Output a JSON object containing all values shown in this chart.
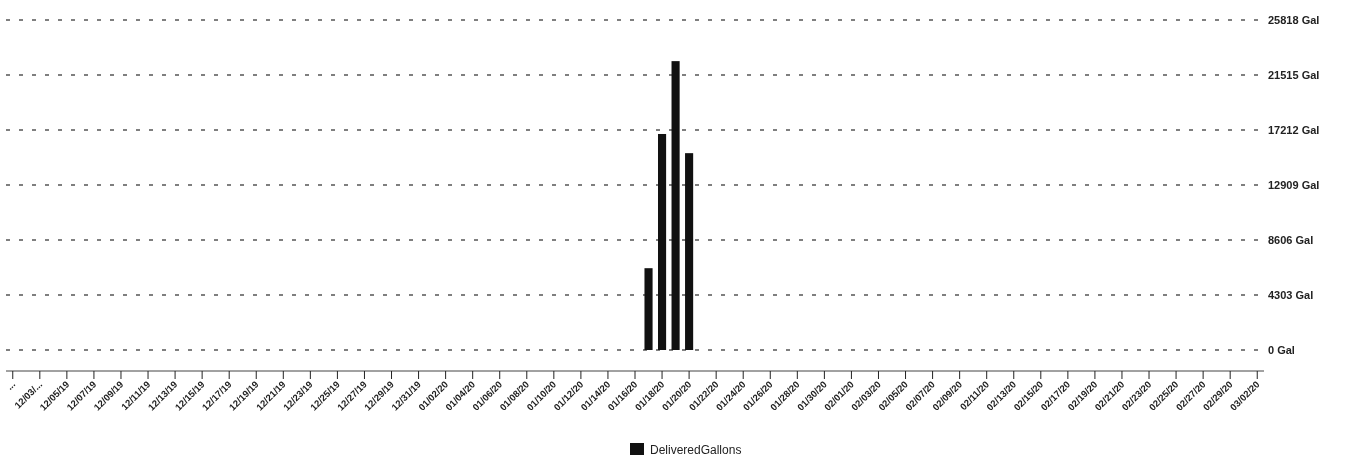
{
  "chart_data": {
    "type": "bar",
    "categories": [
      "...",
      null,
      "12/03/...",
      null,
      "12/05/19",
      null,
      "12/07/19",
      null,
      "12/09/19",
      null,
      "12/11/19",
      null,
      "12/13/19",
      null,
      "12/15/19",
      null,
      "12/17/19",
      null,
      "12/19/19",
      null,
      "12/21/19",
      null,
      "12/23/19",
      null,
      "12/25/19",
      null,
      "12/27/19",
      null,
      "12/29/19",
      null,
      "12/31/19",
      null,
      "01/02/20",
      null,
      "01/04/20",
      null,
      "01/06/20",
      null,
      "01/08/20",
      null,
      "01/10/20",
      null,
      "01/12/20",
      null,
      "01/14/20",
      null,
      "01/16/20",
      null,
      "01/18/20",
      null,
      "01/20/20",
      null,
      "01/22/20",
      null,
      "01/24/20",
      null,
      "01/26/20",
      null,
      "01/28/20",
      null,
      "01/30/20",
      null,
      "02/01/20",
      null,
      "02/03/20",
      null,
      "02/05/20",
      null,
      "02/07/20",
      null,
      "02/09/20",
      null,
      "02/11/20",
      null,
      "02/13/20",
      null,
      "02/15/20",
      null,
      "02/17/20",
      null,
      "02/19/20",
      null,
      "02/21/20",
      null,
      "02/23/20",
      null,
      "02/25/20",
      null,
      "02/27/20",
      null,
      "02/29/20",
      null,
      "03/02/20"
    ],
    "series": [
      {
        "name": "DeliveredGallons",
        "color": "#111111",
        "values": [
          0,
          0,
          0,
          0,
          0,
          0,
          0,
          0,
          0,
          0,
          0,
          0,
          0,
          0,
          0,
          0,
          0,
          0,
          0,
          0,
          0,
          0,
          0,
          0,
          0,
          0,
          0,
          0,
          0,
          0,
          0,
          0,
          0,
          0,
          0,
          0,
          0,
          0,
          0,
          0,
          0,
          0,
          0,
          0,
          0,
          0,
          0,
          6400,
          16900,
          22600,
          15400,
          0,
          0,
          0,
          0,
          0,
          0,
          0,
          0,
          0,
          0,
          0,
          0,
          0,
          0,
          0,
          0,
          0,
          0,
          0,
          0,
          0,
          0,
          0,
          0,
          0,
          0,
          0,
          0,
          0,
          0,
          0,
          0,
          0,
          0,
          0,
          0,
          0,
          0,
          0,
          0,
          0,
          0
        ]
      }
    ],
    "ylim": [
      0,
      25818
    ],
    "yticks": [
      {
        "value": 0,
        "label": "0 Gal"
      },
      {
        "value": 4303,
        "label": "4303 Gal"
      },
      {
        "value": 8606,
        "label": "8606 Gal"
      },
      {
        "value": 12909,
        "label": "12909 Gal"
      },
      {
        "value": 17212,
        "label": "17212 Gal"
      },
      {
        "value": 21515,
        "label": "21515 Gal"
      },
      {
        "value": 25818,
        "label": "25818 Gal"
      }
    ],
    "grid": "y",
    "legend": "bottom"
  }
}
